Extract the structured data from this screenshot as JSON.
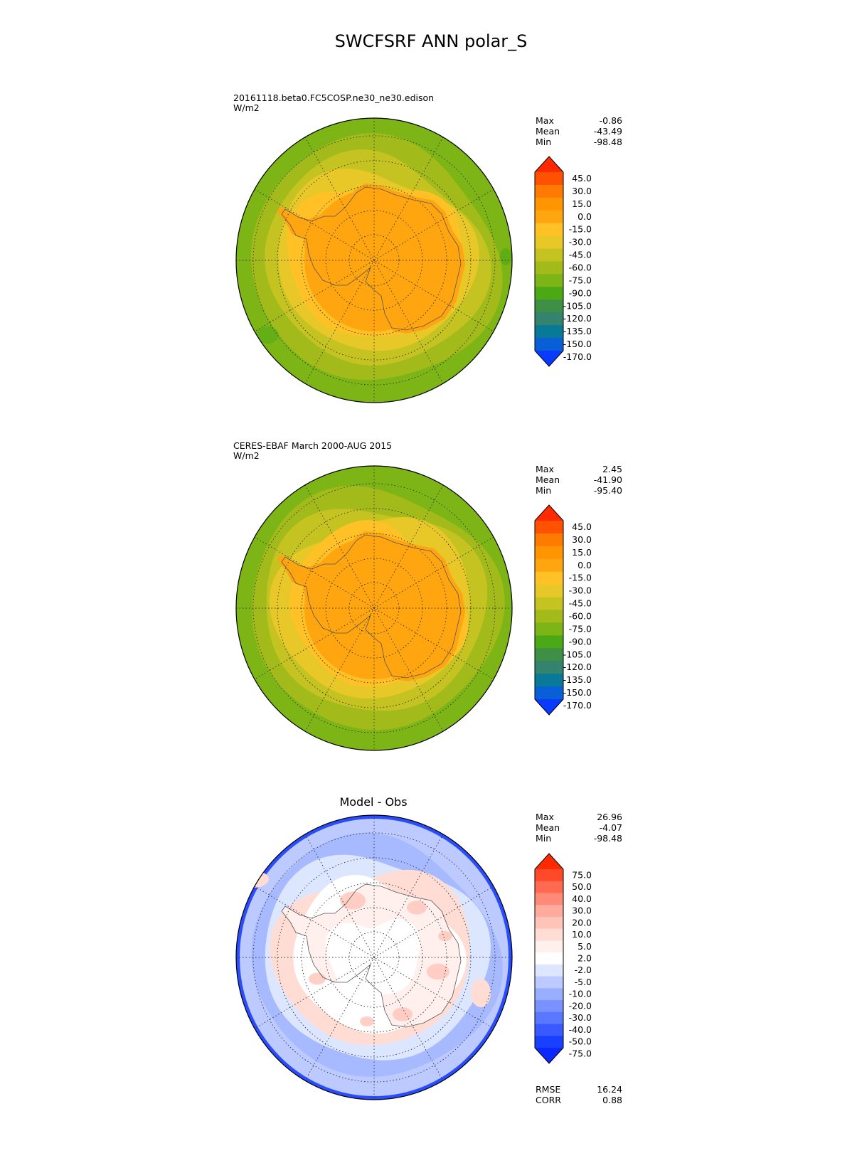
{
  "title": "SWCFSRF ANN polar_S",
  "panels": [
    {
      "id": "model",
      "title_lines": [
        "20161118.beta0.FC5COSP.ne30_ne30.edison",
        "W/m2"
      ],
      "title_centered": false,
      "stats": [
        {
          "label": "Max",
          "value": "-0.86"
        },
        {
          "label": "Mean",
          "value": "-43.49"
        },
        {
          "label": "Min",
          "value": "-98.48"
        }
      ],
      "colorbar": {
        "labels": [
          "45.0",
          "30.0",
          "15.0",
          "0.0",
          "-15.0",
          "-30.0",
          "-45.0",
          "-60.0",
          "-75.0",
          "-90.0",
          "-105.0",
          "-120.0",
          "-135.0",
          "-150.0",
          "-170.0"
        ],
        "colors": [
          "#ff2a00",
          "#ff5200",
          "#ff7a00",
          "#ff9500",
          "#ffa510",
          "#ffc125",
          "#e8c829",
          "#c4c322",
          "#a2ba1a",
          "#7db416",
          "#4aa914",
          "#3f8f46",
          "#34836f",
          "#087a98",
          "#085fd6",
          "#083aff"
        ]
      },
      "map_style": "model"
    },
    {
      "id": "obs",
      "title_lines": [
        "CERES-EBAF March 2000-AUG 2015",
        "W/m2"
      ],
      "title_centered": false,
      "stats": [
        {
          "label": "Max",
          "value": "2.45"
        },
        {
          "label": "Mean",
          "value": "-41.90"
        },
        {
          "label": "Min",
          "value": "-95.40"
        }
      ],
      "colorbar": {
        "labels": [
          "45.0",
          "30.0",
          "15.0",
          "0.0",
          "-15.0",
          "-30.0",
          "-45.0",
          "-60.0",
          "-75.0",
          "-90.0",
          "-105.0",
          "-120.0",
          "-135.0",
          "-150.0",
          "-170.0"
        ],
        "colors": [
          "#ff2a00",
          "#ff5200",
          "#ff7a00",
          "#ff9500",
          "#ffa510",
          "#ffc125",
          "#e8c829",
          "#c4c322",
          "#a2ba1a",
          "#7db416",
          "#4aa914",
          "#3f8f46",
          "#34836f",
          "#087a98",
          "#085fd6",
          "#083aff"
        ]
      },
      "map_style": "obs"
    },
    {
      "id": "diff",
      "title_lines": [
        "Model - Obs"
      ],
      "title_centered": true,
      "stats": [
        {
          "label": "Max",
          "value": "26.96"
        },
        {
          "label": "Mean",
          "value": "-4.07"
        },
        {
          "label": "Min",
          "value": "-98.48"
        }
      ],
      "extra_stats": [
        {
          "label": "RMSE",
          "value": "16.24"
        },
        {
          "label": "CORR",
          "value": "0.88"
        }
      ],
      "colorbar": {
        "labels": [
          "75.0",
          "50.0",
          "40.0",
          "30.0",
          "20.0",
          "10.0",
          "5.0",
          "2.0",
          "-2.0",
          "-5.0",
          "-10.0",
          "-20.0",
          "-30.0",
          "-40.0",
          "-50.0",
          "-75.0"
        ],
        "colors": [
          "#ff2a00",
          "#ff4a2a",
          "#ff6a50",
          "#ff8a78",
          "#ffaa9c",
          "#ffc4b8",
          "#ffdcd4",
          "#fff0ee",
          "#ffffff",
          "#dde6ff",
          "#bccaff",
          "#9aaeff",
          "#7a92ff",
          "#5a78ff",
          "#3a5aff",
          "#1a40ff",
          "#0a28ff"
        ]
      },
      "map_style": "diff"
    }
  ]
}
